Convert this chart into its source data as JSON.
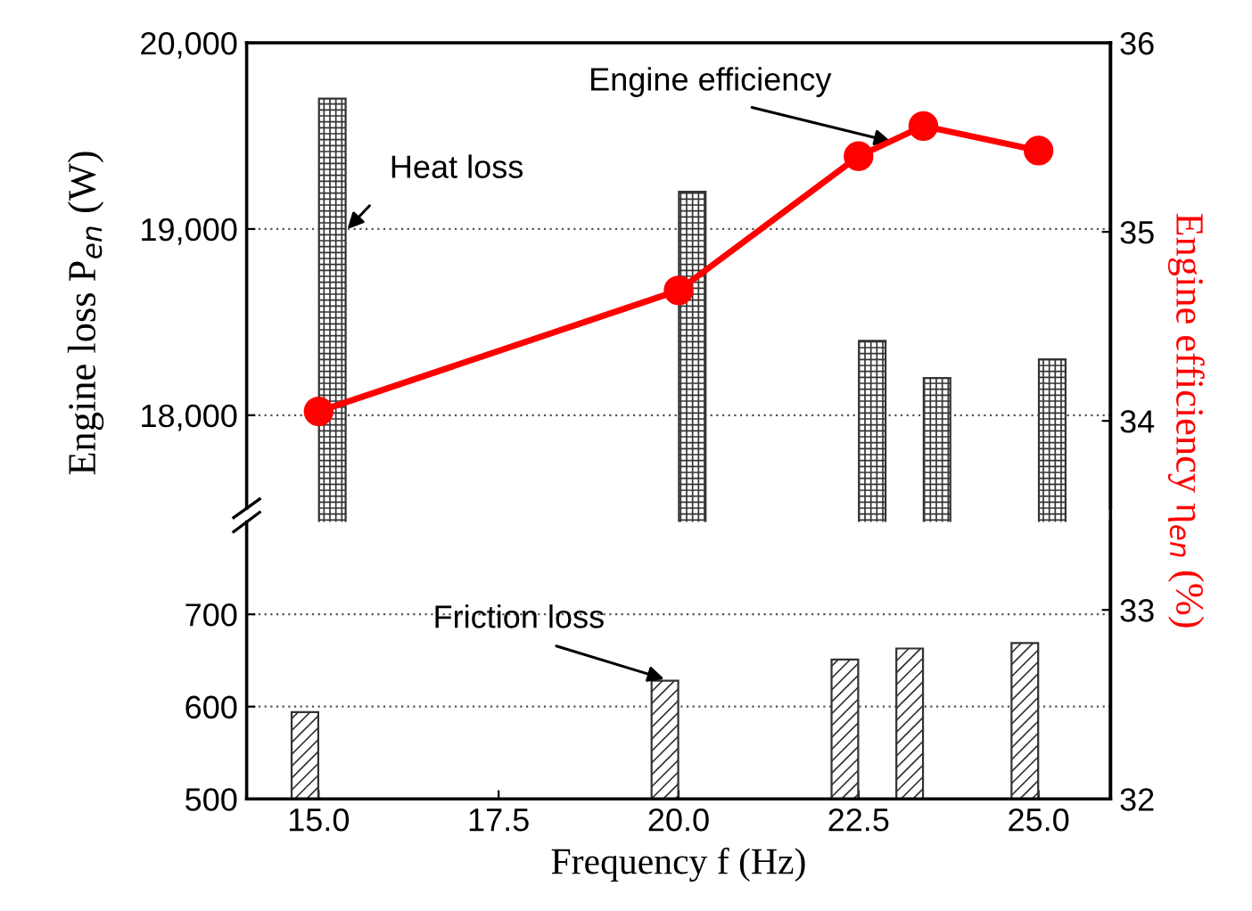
{
  "chart_data": [
    {
      "type": "bar",
      "xlim": [
        14,
        26
      ],
      "ylim": [
        17500,
        20000
      ],
      "yticks": [
        {
          "value": 18000,
          "label": "18,000"
        },
        {
          "value": 19000,
          "label": "19,000"
        },
        {
          "value": 20000,
          "label": "20,000"
        }
      ],
      "ylabel": "Engine loss P$_{en}$ (W)",
      "y2label": "Engine efficiency η$_{en}$ (%)",
      "y2lim": [
        32,
        36
      ],
      "y2ticks": [
        32,
        33,
        34,
        35,
        36
      ],
      "grid": "y",
      "tick_labels": "y",
      "series": [
        {
          "color": "#333333",
          "x": [
            15.19,
            20.19,
            22.69,
            23.59,
            25.19
          ],
          "values": [
            19700,
            19200,
            18400,
            18200,
            18300
          ]
        },
        {
          "type": "line",
          "axis": "y2",
          "color": "#ff0000",
          "marker": "circle",
          "line_style": "solid",
          "x": [
            15.0,
            20.0,
            22.5,
            23.4,
            25.0
          ],
          "values": [
            34.05,
            34.69,
            35.4,
            35.56,
            35.43
          ]
        }
      ],
      "annotations": [
        {
          "text": "Heat loss",
          "x": 15.4,
          "y": 19000
        },
        {
          "text": "Engine efficiency",
          "x": 22.95,
          "y": 19470
        }
      ]
    },
    {
      "type": "bar",
      "xlim": [
        14,
        26
      ],
      "ylim": [
        500,
        800
      ],
      "yticks": [
        500,
        600,
        700
      ],
      "xticks": [
        {
          "value": 15,
          "label": "15.0"
        },
        {
          "value": 17.5,
          "label": "17.5"
        },
        {
          "value": 20,
          "label": "20.0"
        },
        {
          "value": 22.5,
          "label": "22.5"
        },
        {
          "value": 25,
          "label": "25.0"
        }
      ],
      "xlabel": "Frequency f (Hz)",
      "grid": "y",
      "series": [
        {
          "color": "#333333",
          "x": [
            14.81,
            19.81,
            22.31,
            23.21,
            24.81
          ],
          "values": [
            594,
            628,
            651,
            663,
            669
          ]
        }
      ],
      "annotations": [
        {
          "text": "Friction loss",
          "x": 19.8,
          "y": 630
        }
      ]
    }
  ]
}
